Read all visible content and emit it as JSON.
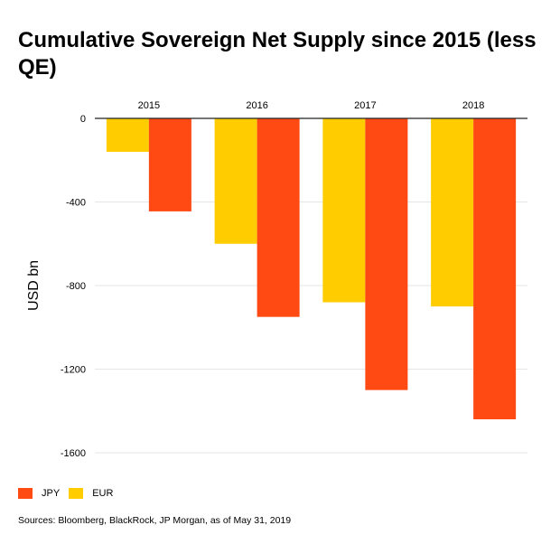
{
  "title": "Cumulative Sovereign Net Supply since 2015 (less QE)",
  "source": "Sources: Bloomberg, BlackRock, JP Morgan, as of May 31, 2019",
  "colors": {
    "EUR": "#FFCC00",
    "JPY": "#FF4A14"
  },
  "chart_data": {
    "type": "bar",
    "categories": [
      "2015",
      "2016",
      "2017",
      "2018"
    ],
    "series": [
      {
        "name": "EUR",
        "values": [
          -160,
          -600,
          -880,
          -900
        ]
      },
      {
        "name": "JPY",
        "values": [
          -445,
          -950,
          -1300,
          -1440
        ]
      }
    ],
    "ylabel": "USD bn",
    "xlabel": "",
    "ylim": [
      -1650,
      0
    ],
    "yticks": [
      0,
      -400,
      -800,
      -1200,
      -1600
    ],
    "ytick_labels": [
      "0",
      "-400",
      "-800",
      "-1200",
      "-1600"
    ],
    "legend": [
      {
        "name": "JPY",
        "color": "#FF4A14"
      },
      {
        "name": "EUR",
        "color": "#FFCC00"
      }
    ],
    "legend_position": "bottom-left",
    "grid": "horizontal",
    "x_axis_position": "top"
  }
}
